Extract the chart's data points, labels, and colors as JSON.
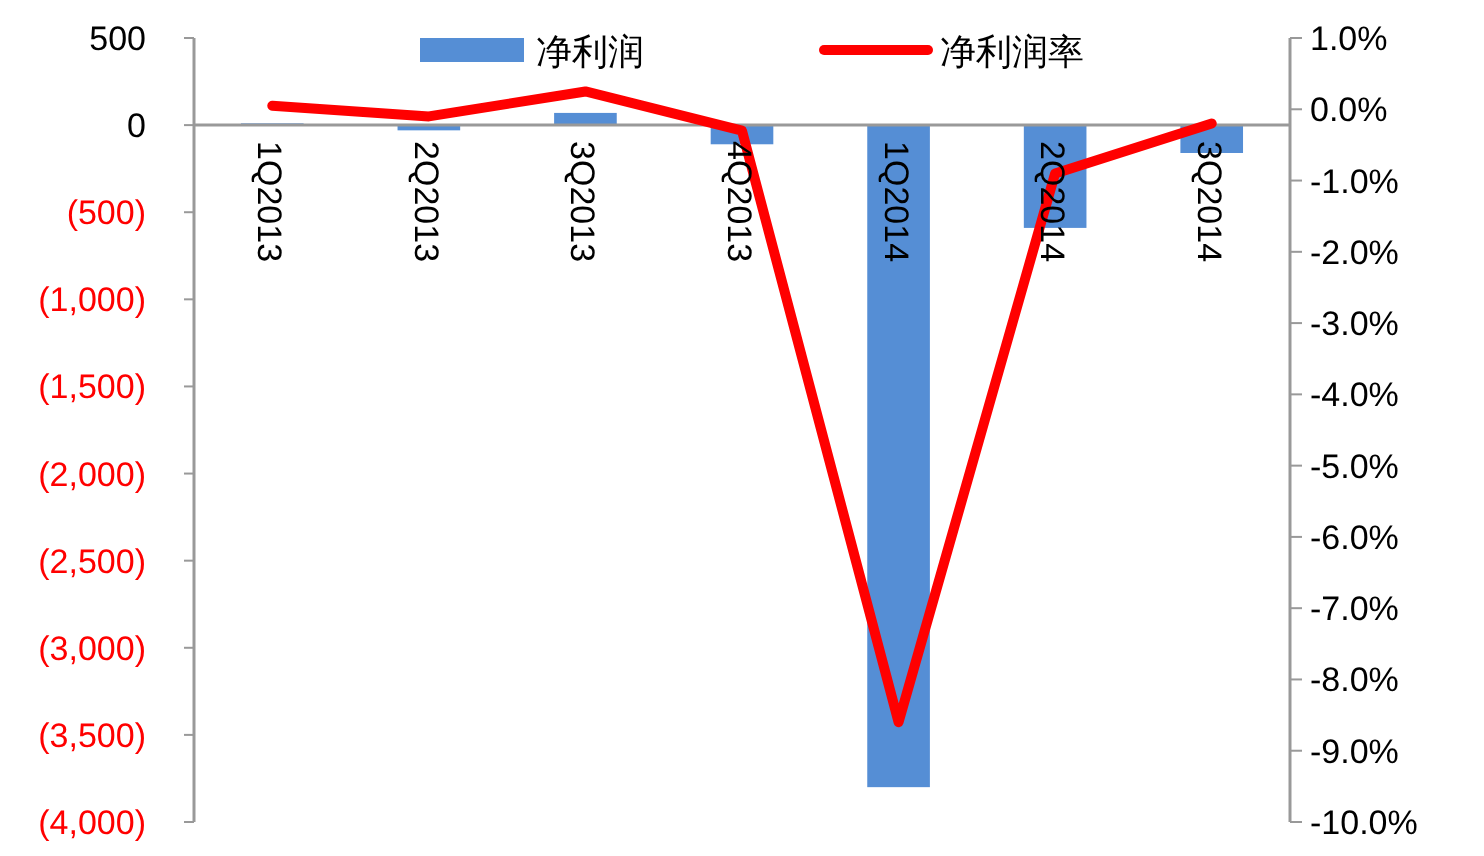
{
  "chart_data": {
    "type": "bar",
    "categories": [
      "1Q2013",
      "2Q2013",
      "3Q2013",
      "4Q2013",
      "1Q2014",
      "2Q2014",
      "3Q2014"
    ],
    "series": [
      {
        "name": "净利润",
        "color": "#558ed5",
        "values": [
          10,
          -30,
          70,
          -110,
          -3800,
          -590,
          -160
        ]
      },
      {
        "name": "净利润率",
        "type": "line",
        "axis": "y2",
        "color": "#ff0000",
        "values": [
          0.05,
          -0.1,
          0.25,
          -0.3,
          -8.6,
          -0.9,
          -0.2
        ]
      }
    ],
    "ylim": [
      -4000,
      500
    ],
    "yticks": [
      500,
      0,
      {
        "value": -500,
        "label": "(500)"
      },
      {
        "value": -1000,
        "label": "(1,000)"
      },
      {
        "value": -1500,
        "label": "(1,500)"
      },
      {
        "value": -2000,
        "label": "(2,000)"
      },
      {
        "value": -2500,
        "label": "(2,500)"
      },
      {
        "value": -3000,
        "label": "(3,000)"
      },
      {
        "value": -3500,
        "label": "(3,500)"
      },
      {
        "value": -4000,
        "label": "(4,000)"
      }
    ],
    "y2lim": [
      -10,
      1
    ],
    "y2ticks": [
      {
        "value": 1,
        "label": "1.0%"
      },
      {
        "value": 0,
        "label": "0.0%"
      },
      {
        "value": -1,
        "label": "-1.0%"
      },
      {
        "value": -2,
        "label": "-2.0%"
      },
      {
        "value": -3,
        "label": "-3.0%"
      },
      {
        "value": -4,
        "label": "-4.0%"
      },
      {
        "value": -5,
        "label": "-5.0%"
      },
      {
        "value": -6,
        "label": "-6.0%"
      },
      {
        "value": -7,
        "label": "-7.0%"
      },
      {
        "value": -8,
        "label": "-8.0%"
      },
      {
        "value": -9,
        "label": "-9.0%"
      },
      {
        "value": -10,
        "label": "-10.0%"
      }
    ],
    "legend": "top"
  }
}
